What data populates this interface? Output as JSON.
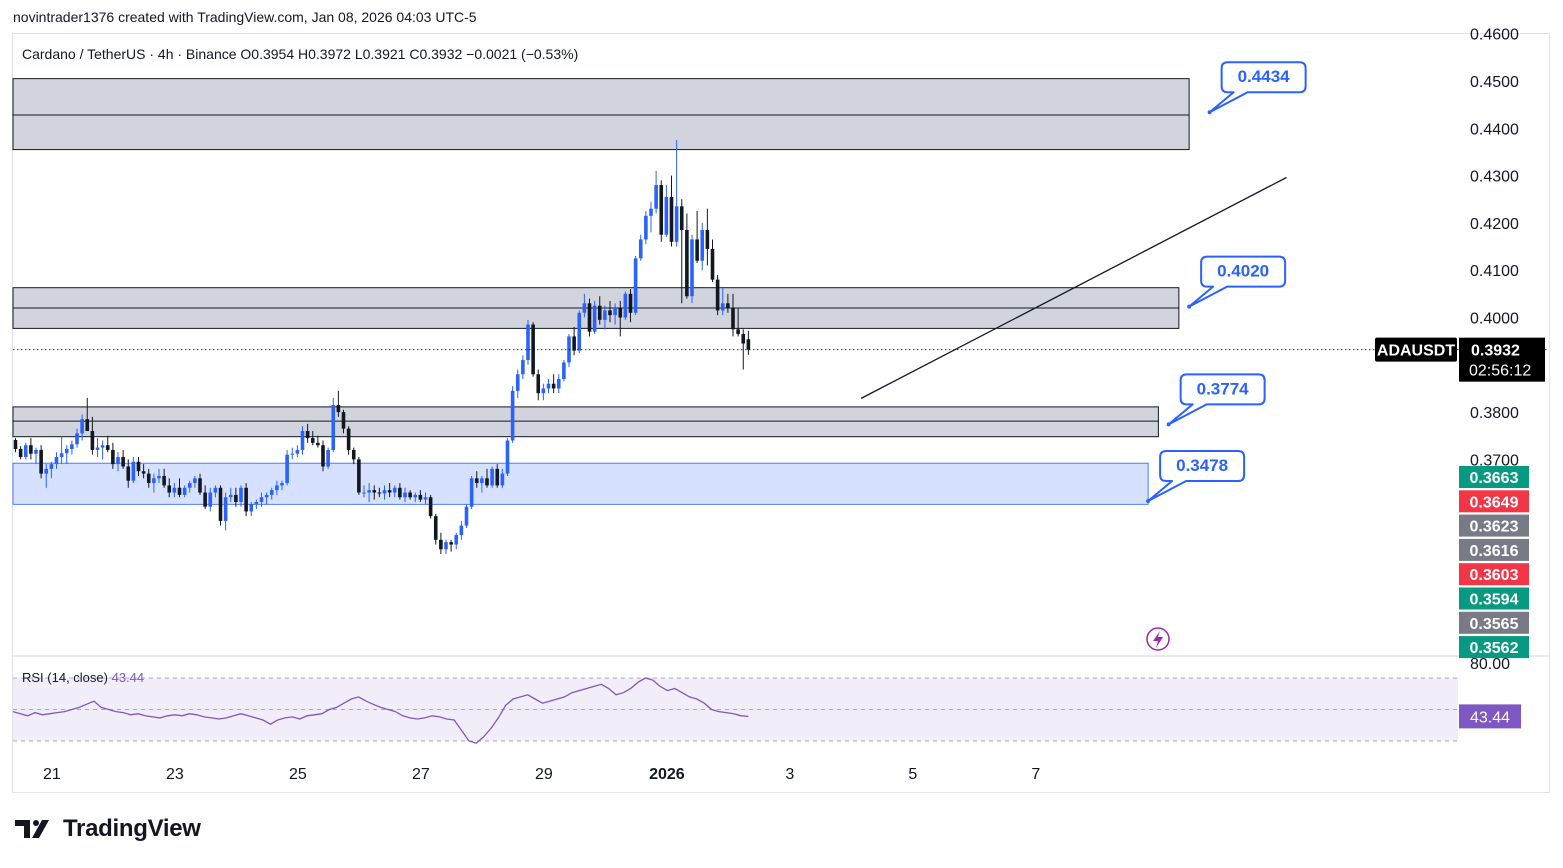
{
  "credit": "novintrader1376 created with TradingView.com, Jan 08, 2026 04:03 UTC-5",
  "legend": {
    "symbol": "Cardano / TetherUS · 4h · Binance",
    "open": "O0.3954",
    "high": "H0.3972",
    "low": "L0.3921",
    "close": "C0.3932",
    "change": "−0.0021 (−0.53%)"
  },
  "footer": {
    "brand": "TradingView",
    "logo_icon": "tradingview-logo-icon"
  },
  "lightning_icon": "lightning-icon",
  "price_tag": {
    "symbol": "ADAUSDT",
    "price": "0.3932",
    "countdown": "02:56:12"
  },
  "right_labels": [
    {
      "text": "0.3663",
      "color": "#089981"
    },
    {
      "text": "0.3649",
      "color": "#f23645"
    },
    {
      "text": "0.3623",
      "color": "#787b86"
    },
    {
      "text": "0.3616",
      "color": "#787b86"
    },
    {
      "text": "0.3603",
      "color": "#f23645"
    },
    {
      "text": "0.3594",
      "color": "#089981"
    },
    {
      "text": "0.3565",
      "color": "#787b86"
    },
    {
      "text": "0.3562",
      "color": "#089981"
    }
  ],
  "rsi": {
    "label": "RSI (14, close)",
    "value": "43.44",
    "upper_label": "80.00",
    "color": "#7e57c2"
  },
  "colors": {
    "bull": "#2962ff",
    "bear": "#131722",
    "zone": "#d1d4dc",
    "support_zone": "#d6e1ff",
    "callout": "#2962ff"
  },
  "chart_data": {
    "type": "candlestick",
    "symbol": "ADAUSDT",
    "interval": "4h",
    "exchange": "Binance",
    "y_ticks": [
      0.46,
      0.45,
      0.44,
      0.43,
      0.42,
      0.41,
      0.4,
      0.38,
      0.37
    ],
    "y_tick_labels": [
      "0.4600",
      "0.4500",
      "0.4400",
      "0.4300",
      "0.4200",
      "0.4100",
      "0.4000",
      "0.3800",
      "0.3700"
    ],
    "ylim": [
      0.349,
      0.4615
    ],
    "x_tick_labels": [
      "21",
      "23",
      "25",
      "27",
      "29",
      "2026",
      "3",
      "5",
      "7"
    ],
    "x_tick_bars": [
      3,
      27,
      51,
      75,
      99,
      123,
      147,
      171,
      195
    ],
    "last_price": 0.3932,
    "zones": [
      {
        "low": 0.4355,
        "high": 0.4505,
        "mid": 0.4428,
        "kind": "resistance",
        "start_bar": 0,
        "end_bar": 229
      },
      {
        "low": 0.3977,
        "high": 0.4063,
        "mid": 0.402,
        "kind": "resistance",
        "start_bar": 0,
        "end_bar": 227
      },
      {
        "low": 0.3748,
        "high": 0.3811,
        "mid": 0.3781,
        "kind": "support",
        "start_bar": 0,
        "end_bar": 223
      },
      {
        "low": 0.3605,
        "high": 0.3692,
        "kind": "demand",
        "start_bar": 0,
        "end_bar": 221
      }
    ],
    "callouts": [
      {
        "label": "0.4434",
        "value": 0.4434,
        "anchor_bar": 233,
        "anchor_value": 0.4434
      },
      {
        "label": "0.4020",
        "value": 0.402,
        "anchor_bar": 229,
        "anchor_value": 0.4023
      },
      {
        "label": "0.3774",
        "value": 0.3774,
        "anchor_bar": 225,
        "anchor_value": 0.3774
      },
      {
        "label": "0.3478",
        "value": 0.3478,
        "anchor_bar": 221,
        "anchor_value": 0.3612
      }
    ],
    "trendline": {
      "start_bar": 165,
      "start_value": 0.3829,
      "end_bar": 248,
      "end_value": 0.4296
    },
    "candles_note": "OHLC approximations read from chart, one candle per 4h bar",
    "candles": [
      [
        0.3741,
        0.3745,
        0.3715,
        0.3722
      ],
      [
        0.3722,
        0.3728,
        0.37,
        0.3705
      ],
      [
        0.3705,
        0.3735,
        0.37,
        0.373
      ],
      [
        0.373,
        0.3745,
        0.37,
        0.3712
      ],
      [
        0.3712,
        0.3725,
        0.369,
        0.372
      ],
      [
        0.372,
        0.373,
        0.366,
        0.367
      ],
      [
        0.367,
        0.369,
        0.364,
        0.368
      ],
      [
        0.368,
        0.3695,
        0.366,
        0.369
      ],
      [
        0.369,
        0.3715,
        0.368,
        0.3705
      ],
      [
        0.3705,
        0.3748,
        0.369,
        0.3713
      ],
      [
        0.3713,
        0.373,
        0.369,
        0.3722
      ],
      [
        0.3722,
        0.374,
        0.371,
        0.3732
      ],
      [
        0.3732,
        0.3765,
        0.3725,
        0.3755
      ],
      [
        0.3755,
        0.3795,
        0.374,
        0.3785
      ],
      [
        0.3785,
        0.383,
        0.377,
        0.376
      ],
      [
        0.376,
        0.379,
        0.371,
        0.372
      ],
      [
        0.372,
        0.3745,
        0.3705,
        0.3725
      ],
      [
        0.3725,
        0.374,
        0.37,
        0.373
      ],
      [
        0.373,
        0.375,
        0.3715,
        0.372
      ],
      [
        0.372,
        0.3735,
        0.368,
        0.369
      ],
      [
        0.369,
        0.3715,
        0.3675,
        0.3705
      ],
      [
        0.3705,
        0.372,
        0.368,
        0.3685
      ],
      [
        0.3685,
        0.37,
        0.364,
        0.3655
      ],
      [
        0.3655,
        0.3705,
        0.365,
        0.3695
      ],
      [
        0.3695,
        0.3705,
        0.3665,
        0.3675
      ],
      [
        0.3675,
        0.369,
        0.366,
        0.367
      ],
      [
        0.367,
        0.368,
        0.364,
        0.365
      ],
      [
        0.365,
        0.367,
        0.363,
        0.366
      ],
      [
        0.366,
        0.368,
        0.365,
        0.3665
      ],
      [
        0.3665,
        0.368,
        0.364,
        0.3645
      ],
      [
        0.3645,
        0.366,
        0.362,
        0.363
      ],
      [
        0.363,
        0.365,
        0.362,
        0.364
      ],
      [
        0.364,
        0.366,
        0.362,
        0.3625
      ],
      [
        0.3625,
        0.3645,
        0.362,
        0.364
      ],
      [
        0.364,
        0.3655,
        0.363,
        0.365
      ],
      [
        0.365,
        0.3665,
        0.364,
        0.366
      ],
      [
        0.366,
        0.367,
        0.3625,
        0.363
      ],
      [
        0.363,
        0.3645,
        0.3595,
        0.36
      ],
      [
        0.36,
        0.364,
        0.359,
        0.363
      ],
      [
        0.363,
        0.3645,
        0.362,
        0.364
      ],
      [
        0.364,
        0.3645,
        0.356,
        0.357
      ],
      [
        0.357,
        0.363,
        0.355,
        0.362
      ],
      [
        0.362,
        0.364,
        0.361,
        0.3625
      ],
      [
        0.3625,
        0.364,
        0.36,
        0.361
      ],
      [
        0.361,
        0.3645,
        0.36,
        0.364
      ],
      [
        0.364,
        0.365,
        0.358,
        0.359
      ],
      [
        0.359,
        0.361,
        0.358,
        0.3605
      ],
      [
        0.3605,
        0.3615,
        0.3595,
        0.361
      ],
      [
        0.361,
        0.363,
        0.36,
        0.362
      ],
      [
        0.362,
        0.363,
        0.3605,
        0.3625
      ],
      [
        0.3625,
        0.364,
        0.3615,
        0.3635
      ],
      [
        0.3635,
        0.3655,
        0.3625,
        0.3645
      ],
      [
        0.3645,
        0.3655,
        0.3635,
        0.365
      ],
      [
        0.365,
        0.372,
        0.3645,
        0.371
      ],
      [
        0.371,
        0.3725,
        0.37,
        0.3712
      ],
      [
        0.3712,
        0.373,
        0.3705,
        0.372
      ],
      [
        0.372,
        0.377,
        0.371,
        0.376
      ],
      [
        0.376,
        0.3775,
        0.3735,
        0.3745
      ],
      [
        0.3745,
        0.376,
        0.373,
        0.3735
      ],
      [
        0.3735,
        0.375,
        0.3725,
        0.373
      ],
      [
        0.373,
        0.374,
        0.3675,
        0.3685
      ],
      [
        0.3685,
        0.3725,
        0.368,
        0.372
      ],
      [
        0.372,
        0.383,
        0.3715,
        0.3815
      ],
      [
        0.3815,
        0.3845,
        0.379,
        0.38
      ],
      [
        0.38,
        0.3805,
        0.3755,
        0.3765
      ],
      [
        0.3765,
        0.377,
        0.371,
        0.372
      ],
      [
        0.372,
        0.3725,
        0.369,
        0.37
      ],
      [
        0.37,
        0.3705,
        0.3625,
        0.363
      ],
      [
        0.363,
        0.3645,
        0.362,
        0.363
      ],
      [
        0.363,
        0.365,
        0.361,
        0.3635
      ],
      [
        0.3635,
        0.3645,
        0.3615,
        0.363
      ],
      [
        0.363,
        0.364,
        0.362,
        0.3628
      ],
      [
        0.3628,
        0.3645,
        0.3615,
        0.3635
      ],
      [
        0.3635,
        0.365,
        0.362,
        0.363
      ],
      [
        0.363,
        0.3645,
        0.362,
        0.364
      ],
      [
        0.364,
        0.365,
        0.3615,
        0.362
      ],
      [
        0.362,
        0.364,
        0.361,
        0.363
      ],
      [
        0.363,
        0.3635,
        0.3615,
        0.362
      ],
      [
        0.362,
        0.363,
        0.361,
        0.3625
      ],
      [
        0.3625,
        0.3635,
        0.361,
        0.3615
      ],
      [
        0.3615,
        0.363,
        0.3605,
        0.362
      ],
      [
        0.362,
        0.3625,
        0.3575,
        0.358
      ],
      [
        0.358,
        0.3585,
        0.352,
        0.353
      ],
      [
        0.353,
        0.3545,
        0.35,
        0.351
      ],
      [
        0.351,
        0.353,
        0.35,
        0.3525
      ],
      [
        0.3525,
        0.353,
        0.3505,
        0.352
      ],
      [
        0.352,
        0.3545,
        0.351,
        0.354
      ],
      [
        0.354,
        0.357,
        0.353,
        0.356
      ],
      [
        0.356,
        0.3605,
        0.3555,
        0.36
      ],
      [
        0.36,
        0.3665,
        0.3595,
        0.366
      ],
      [
        0.366,
        0.3675,
        0.364,
        0.365
      ],
      [
        0.365,
        0.3665,
        0.363,
        0.366
      ],
      [
        0.366,
        0.368,
        0.364,
        0.3645
      ],
      [
        0.3645,
        0.3685,
        0.364,
        0.368
      ],
      [
        0.368,
        0.369,
        0.364,
        0.3645
      ],
      [
        0.3645,
        0.368,
        0.364,
        0.367
      ],
      [
        0.367,
        0.3745,
        0.3665,
        0.374
      ],
      [
        0.374,
        0.3855,
        0.3735,
        0.3845
      ],
      [
        0.3845,
        0.389,
        0.383,
        0.388
      ],
      [
        0.388,
        0.392,
        0.387,
        0.391
      ],
      [
        0.391,
        0.3995,
        0.39,
        0.3985
      ],
      [
        0.3985,
        0.399,
        0.3875,
        0.388
      ],
      [
        0.388,
        0.389,
        0.3825,
        0.384
      ],
      [
        0.384,
        0.386,
        0.3825,
        0.385
      ],
      [
        0.385,
        0.387,
        0.384,
        0.386
      ],
      [
        0.386,
        0.388,
        0.384,
        0.385
      ],
      [
        0.385,
        0.388,
        0.384,
        0.387
      ],
      [
        0.387,
        0.391,
        0.3865,
        0.3905
      ],
      [
        0.3905,
        0.3965,
        0.3895,
        0.396
      ],
      [
        0.396,
        0.398,
        0.392,
        0.393
      ],
      [
        0.393,
        0.4015,
        0.3925,
        0.401
      ],
      [
        0.401,
        0.405,
        0.4,
        0.403
      ],
      [
        0.403,
        0.404,
        0.396,
        0.397
      ],
      [
        0.397,
        0.4035,
        0.3965,
        0.4025
      ],
      [
        0.4025,
        0.4045,
        0.3985,
        0.3995
      ],
      [
        0.3995,
        0.4025,
        0.3975,
        0.4015
      ],
      [
        0.4015,
        0.4035,
        0.399,
        0.4005
      ],
      [
        0.4005,
        0.403,
        0.3985,
        0.402
      ],
      [
        0.402,
        0.4035,
        0.396,
        0.4
      ],
      [
        0.4,
        0.4055,
        0.3995,
        0.405
      ],
      [
        0.405,
        0.406,
        0.399,
        0.401
      ],
      [
        0.401,
        0.413,
        0.4005,
        0.4125
      ],
      [
        0.4125,
        0.4175,
        0.412,
        0.4165
      ],
      [
        0.4165,
        0.4225,
        0.4155,
        0.4215
      ],
      [
        0.4215,
        0.4245,
        0.418,
        0.423
      ],
      [
        0.423,
        0.431,
        0.422,
        0.428
      ],
      [
        0.428,
        0.429,
        0.416,
        0.4175
      ],
      [
        0.4175,
        0.428,
        0.417,
        0.4255
      ],
      [
        0.4255,
        0.43,
        0.415,
        0.416
      ],
      [
        0.416,
        0.4375,
        0.415,
        0.4235
      ],
      [
        0.4235,
        0.425,
        0.403,
        0.4185
      ],
      [
        0.4185,
        0.422,
        0.404,
        0.4045
      ],
      [
        0.4045,
        0.4175,
        0.403,
        0.4165
      ],
      [
        0.4165,
        0.4225,
        0.4115,
        0.412
      ],
      [
        0.412,
        0.42,
        0.41,
        0.4185
      ],
      [
        0.4185,
        0.423,
        0.411,
        0.4145
      ],
      [
        0.4145,
        0.4165,
        0.4075,
        0.408
      ],
      [
        0.408,
        0.409,
        0.4005,
        0.4015
      ],
      [
        0.4015,
        0.4065,
        0.4005,
        0.403
      ],
      [
        0.403,
        0.405,
        0.401,
        0.402
      ],
      [
        0.402,
        0.405,
        0.396,
        0.3975
      ],
      [
        0.3975,
        0.402,
        0.396,
        0.3965
      ],
      [
        0.3965,
        0.3975,
        0.389,
        0.3945
      ],
      [
        0.3954,
        0.3972,
        0.3921,
        0.3932
      ]
    ],
    "rsi_series": {
      "name": "RSI (14, close)",
      "period": 14,
      "last": 43.44,
      "levels": [
        80,
        50,
        20
      ],
      "values": [
        48,
        46,
        44,
        47,
        45,
        46,
        47,
        48,
        50,
        52,
        55,
        58,
        52,
        50,
        48,
        47,
        45,
        46,
        44,
        43,
        42,
        44,
        45,
        44,
        46,
        45,
        43,
        42,
        41,
        42,
        44,
        46,
        44,
        42,
        40,
        36,
        40,
        42,
        43,
        41,
        44,
        45,
        46,
        50,
        52,
        56,
        60,
        62,
        58,
        55,
        52,
        50,
        48,
        44,
        42,
        41,
        42,
        44,
        43,
        41,
        40,
        30,
        20,
        18,
        24,
        32,
        42,
        54,
        60,
        62,
        64,
        60,
        56,
        58,
        60,
        62,
        66,
        68,
        70,
        72,
        74,
        70,
        64,
        66,
        70,
        76,
        80,
        78,
        72,
        68,
        70,
        66,
        62,
        60,
        56,
        50,
        48,
        47,
        46,
        44,
        43.44
      ]
    }
  }
}
